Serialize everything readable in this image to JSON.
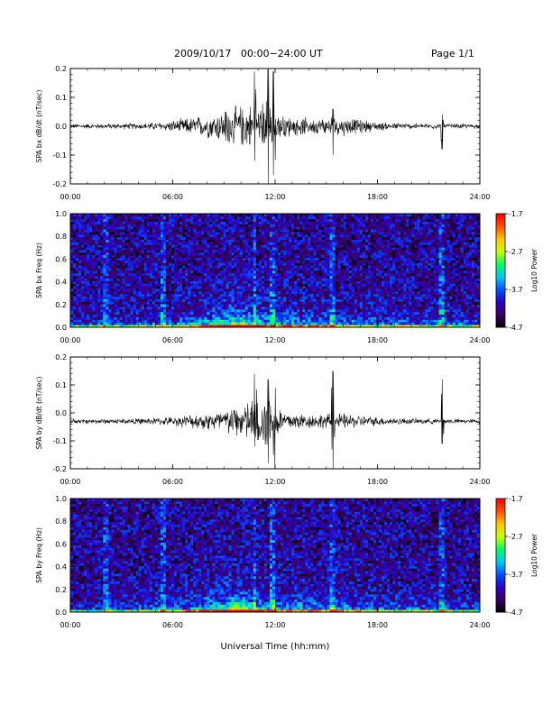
{
  "header": {
    "title": "2009/10/17   00:00−24:00 UT",
    "page": "Page 1/1"
  },
  "colors": {
    "trace": "#000000",
    "colorbar_stops": [
      "#000000",
      "#3c0060",
      "#2a00c8",
      "#0050ff",
      "#00c8ff",
      "#00ff64",
      "#c8ff00",
      "#ffc800",
      "#ff5000",
      "#ff0000"
    ]
  },
  "chart_data": [
    {
      "type": "line",
      "ylabel": "SPA bx dB/dt (nT/sec)",
      "x_ticks": [
        "00:00",
        "06:00",
        "12:00",
        "18:00",
        "24:00"
      ],
      "x_range_hours": [
        0,
        24
      ],
      "ylim": [
        -0.2,
        0.2
      ],
      "y_ticks": [
        "-0.2",
        "-0.1",
        "0.0",
        "0.1",
        "0.2"
      ],
      "baseline": 0.0,
      "noise_level": [
        [
          0,
          0.006
        ],
        [
          4,
          0.008
        ],
        [
          5.5,
          0.012
        ],
        [
          8,
          0.03
        ],
        [
          9,
          0.045
        ],
        [
          10.5,
          0.06
        ],
        [
          11.5,
          0.07
        ],
        [
          12.5,
          0.03
        ],
        [
          14,
          0.02
        ],
        [
          16,
          0.025
        ],
        [
          18,
          0.012
        ],
        [
          20,
          0.008
        ],
        [
          24,
          0.006
        ]
      ],
      "spikes": [
        [
          10.8,
          0.19,
          -0.12
        ],
        [
          11.6,
          0.2,
          -0.2
        ],
        [
          11.9,
          0.19,
          -0.17
        ],
        [
          15.4,
          0.06,
          -0.1
        ],
        [
          21.8,
          0.04,
          -0.08
        ],
        [
          9.1,
          0.05,
          -0.05
        ]
      ]
    },
    {
      "type": "heatmap",
      "ylabel": "SPA bx Freq (Hz)",
      "x_ticks": [
        "00:00",
        "06:00",
        "12:00",
        "18:00",
        "24:00"
      ],
      "x_range_hours": [
        0,
        24
      ],
      "ylim": [
        0.0,
        1.0
      ],
      "y_ticks": [
        "0.0",
        "0.2",
        "0.4",
        "0.6",
        "0.8",
        "1.0"
      ],
      "colorbar": {
        "label": "Log10 Power",
        "ticks": [
          "-1.7",
          "-2.7",
          "-3.7",
          "-4.7"
        ],
        "range": [
          -4.7,
          -1.7
        ]
      },
      "background_power": -4.2,
      "low_freq_enhancement": [
        [
          0,
          0.2
        ],
        [
          6,
          0.4
        ],
        [
          8.5,
          0.9
        ],
        [
          9.5,
          1.3
        ],
        [
          10.5,
          1.1
        ],
        [
          12,
          0.7
        ],
        [
          15,
          0.6
        ],
        [
          18,
          0.4
        ],
        [
          24,
          0.3
        ]
      ],
      "vertical_streaks_hours": [
        2.1,
        5.5,
        10.8,
        11.9,
        15.4,
        21.8
      ]
    },
    {
      "type": "line",
      "ylabel": "SPA by dB/dt (nT/sec)",
      "x_ticks": [
        "00:00",
        "06:00",
        "12:00",
        "18:00",
        "24:00"
      ],
      "x_range_hours": [
        0,
        24
      ],
      "ylim": [
        -0.2,
        0.2
      ],
      "y_ticks": [
        "-0.2",
        "-0.1",
        "0.0",
        "0.1",
        "0.2"
      ],
      "baseline": -0.03,
      "noise_level": [
        [
          0,
          0.006
        ],
        [
          4,
          0.008
        ],
        [
          6,
          0.012
        ],
        [
          8,
          0.025
        ],
        [
          9.5,
          0.04
        ],
        [
          10.5,
          0.06
        ],
        [
          11.5,
          0.07
        ],
        [
          12.5,
          0.03
        ],
        [
          14,
          0.02
        ],
        [
          16,
          0.022
        ],
        [
          18,
          0.012
        ],
        [
          20,
          0.008
        ],
        [
          24,
          0.006
        ]
      ],
      "spikes": [
        [
          10.8,
          0.17,
          -0.09
        ],
        [
          11.6,
          0.15,
          -0.15
        ],
        [
          12.0,
          0.12,
          -0.2
        ],
        [
          15.4,
          0.18,
          -0.19
        ],
        [
          21.8,
          0.15,
          -0.08
        ]
      ]
    },
    {
      "type": "heatmap",
      "ylabel": "SPA by Freq (Hz)",
      "x_ticks": [
        "00:00",
        "06:00",
        "12:00",
        "18:00",
        "24:00"
      ],
      "x_range_hours": [
        0,
        24
      ],
      "ylim": [
        0.0,
        1.0
      ],
      "y_ticks": [
        "0.0",
        "0.2",
        "0.4",
        "0.6",
        "0.8",
        "1.0"
      ],
      "colorbar": {
        "label": "Log10 Power",
        "ticks": [
          "-1.7",
          "-2.7",
          "-3.7",
          "-4.7"
        ],
        "range": [
          -4.7,
          -1.7
        ]
      },
      "background_power": -4.2,
      "low_freq_enhancement": [
        [
          0,
          0.2
        ],
        [
          6,
          0.4
        ],
        [
          8.5,
          0.9
        ],
        [
          9.5,
          1.4
        ],
        [
          10.5,
          1.1
        ],
        [
          12,
          0.7
        ],
        [
          15,
          0.6
        ],
        [
          18,
          0.45
        ],
        [
          24,
          0.3
        ]
      ],
      "vertical_streaks_hours": [
        2.1,
        5.5,
        10.8,
        11.9,
        15.4,
        21.8
      ]
    }
  ],
  "x_axis_label": "Universal Time (hh:mm)"
}
